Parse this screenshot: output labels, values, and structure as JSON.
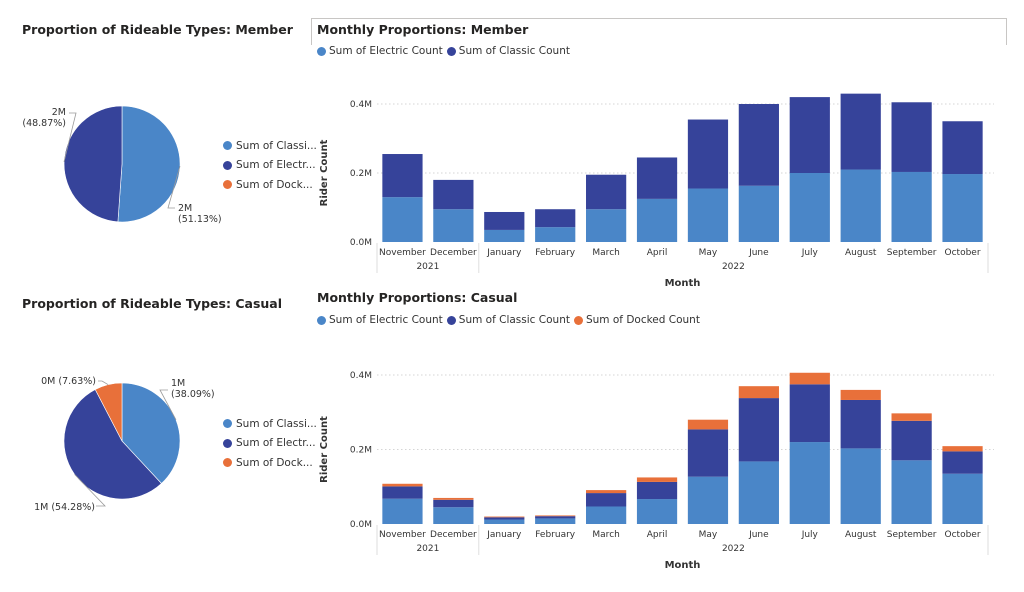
{
  "member_section": {
    "pie_title": "Proportion of Rideable Types: Member",
    "bar_title": "Monthly Proportions: Member",
    "bar_legend": [
      {
        "label": "Sum of Electric Count",
        "color": "#4a86c8"
      },
      {
        "label": "Sum of Classic Count",
        "color": "#36439a"
      }
    ],
    "pie_legend": [
      {
        "label": "Sum of Classi...",
        "color": "#4a86c8"
      },
      {
        "label": "Sum of Electr...",
        "color": "#36439a"
      },
      {
        "label": "Sum of Dock...",
        "color": "#e8703a"
      }
    ]
  },
  "casual_section": {
    "pie_title": "Proportion of Rideable Types: Casual",
    "bar_title": "Monthly Proportions: Casual",
    "bar_legend": [
      {
        "label": "Sum of Electric Count",
        "color": "#4a86c8"
      },
      {
        "label": "Sum of Classic Count",
        "color": "#36439a"
      },
      {
        "label": "Sum of Docked Count",
        "color": "#e8703a"
      }
    ],
    "pie_legend": [
      {
        "label": "Sum of Classi...",
        "color": "#4a86c8"
      },
      {
        "label": "Sum of Electr...",
        "color": "#36439a"
      },
      {
        "label": "Sum of Dock...",
        "color": "#e8703a"
      }
    ]
  },
  "chart_data": [
    {
      "id": "member_pie",
      "type": "pie",
      "slices": [
        {
          "name": "Sum of Classi...",
          "percent": 51.13,
          "label": "2M\n(51.13%)",
          "color": "#4a86c8"
        },
        {
          "name": "Sum of Electr...",
          "percent": 48.87,
          "label": "2M\n(48.87%)",
          "color": "#36439a"
        }
      ]
    },
    {
      "id": "member_bar",
      "type": "bar",
      "stacked": true,
      "title": "Monthly Proportions: Member",
      "xlabel": "Month",
      "ylabel": "Rider Count",
      "ylim": [
        0,
        0.45
      ],
      "yticks": [
        0,
        0.2,
        0.4
      ],
      "ytick_labels": [
        "0.0M",
        "0.2M",
        "0.4M"
      ],
      "categories": [
        "November",
        "December",
        "January",
        "February",
        "March",
        "April",
        "May",
        "June",
        "July",
        "August",
        "September",
        "October"
      ],
      "year_groups": [
        {
          "label": "2021",
          "count": 2
        },
        {
          "label": "2022",
          "count": 10
        }
      ],
      "series": [
        {
          "name": "Sum of Electric Count",
          "color": "#4a86c8",
          "values": [
            0.13,
            0.095,
            0.035,
            0.043,
            0.095,
            0.125,
            0.155,
            0.163,
            0.2,
            0.21,
            0.203,
            0.197
          ]
        },
        {
          "name": "Sum of Classic Count",
          "color": "#36439a",
          "values": [
            0.125,
            0.085,
            0.052,
            0.052,
            0.1,
            0.12,
            0.2,
            0.237,
            0.22,
            0.22,
            0.202,
            0.153
          ]
        }
      ]
    },
    {
      "id": "casual_pie",
      "type": "pie",
      "slices": [
        {
          "name": "Sum of Classi...",
          "percent": 38.09,
          "label": "1M\n(38.09%)",
          "color": "#4a86c8"
        },
        {
          "name": "Sum of Electr...",
          "percent": 54.28,
          "label": "1M (54.28%)",
          "color": "#36439a"
        },
        {
          "name": "Sum of Dock...",
          "percent": 7.63,
          "label": "0M (7.63%)",
          "color": "#e8703a"
        }
      ]
    },
    {
      "id": "casual_bar",
      "type": "bar",
      "stacked": true,
      "title": "Monthly Proportions: Casual",
      "xlabel": "Month",
      "ylabel": "Rider Count",
      "ylim": [
        0,
        0.43
      ],
      "yticks": [
        0,
        0.2,
        0.4
      ],
      "ytick_labels": [
        "0.0M",
        "0.2M",
        "0.4M"
      ],
      "categories": [
        "November",
        "December",
        "January",
        "February",
        "March",
        "April",
        "May",
        "June",
        "July",
        "August",
        "September",
        "October"
      ],
      "year_groups": [
        {
          "label": "2021",
          "count": 2
        },
        {
          "label": "2022",
          "count": 10
        }
      ],
      "series": [
        {
          "name": "Sum of Electric Count",
          "color": "#4a86c8",
          "values": [
            0.068,
            0.045,
            0.012,
            0.015,
            0.047,
            0.067,
            0.127,
            0.168,
            0.22,
            0.203,
            0.171,
            0.135
          ]
        },
        {
          "name": "Sum of Classic Count",
          "color": "#36439a",
          "values": [
            0.033,
            0.02,
            0.006,
            0.006,
            0.036,
            0.046,
            0.127,
            0.17,
            0.155,
            0.13,
            0.106,
            0.06
          ]
        },
        {
          "name": "Sum of Docked Count",
          "color": "#e8703a",
          "values": [
            0.007,
            0.005,
            0.002,
            0.002,
            0.008,
            0.012,
            0.026,
            0.032,
            0.031,
            0.027,
            0.02,
            0.014
          ]
        }
      ]
    }
  ]
}
